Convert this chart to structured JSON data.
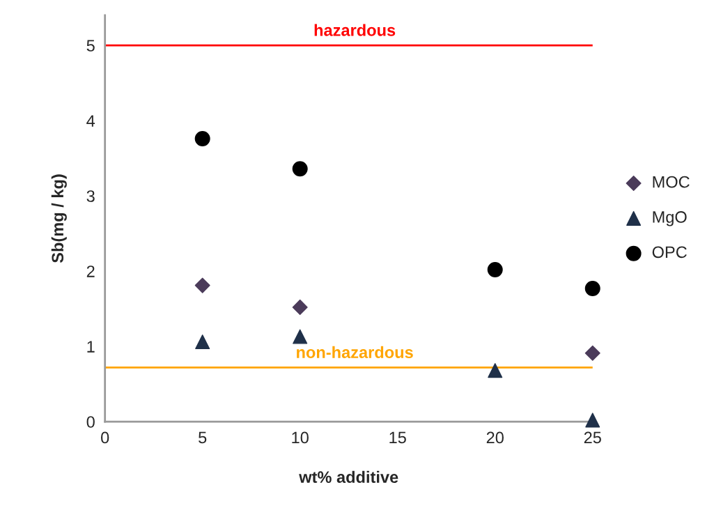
{
  "chart_data": {
    "type": "scatter",
    "xlabel": "wt% additive",
    "ylabel": "Sb(mg / kg)",
    "x": [
      5,
      10,
      20,
      25
    ],
    "series": [
      {
        "name": "MOC",
        "color": "#4b3b5a",
        "marker": "diamond",
        "values": [
          1.81,
          1.52,
          null,
          0.91
        ]
      },
      {
        "name": "MgO",
        "color": "#1f3049",
        "marker": "triangle",
        "values": [
          1.06,
          1.13,
          0.68,
          0.02
        ]
      },
      {
        "name": "OPC",
        "color": "#000000",
        "marker": "circle",
        "values": [
          3.76,
          3.36,
          2.02,
          1.77
        ]
      }
    ],
    "xlim": [
      0,
      25
    ],
    "xticks": [
      0,
      5,
      10,
      15,
      20,
      25
    ],
    "ylim": [
      0,
      5.4
    ],
    "yticks": [
      0,
      1,
      2,
      3,
      4,
      5
    ],
    "ref_lines": [
      {
        "axis": "y",
        "value": 5,
        "label": "hazardous",
        "color": "#ff0000"
      },
      {
        "axis": "y",
        "value": 0.72,
        "label": "non-hazardous",
        "color": "#ffa500"
      }
    ],
    "grid": false,
    "legend": "right"
  }
}
